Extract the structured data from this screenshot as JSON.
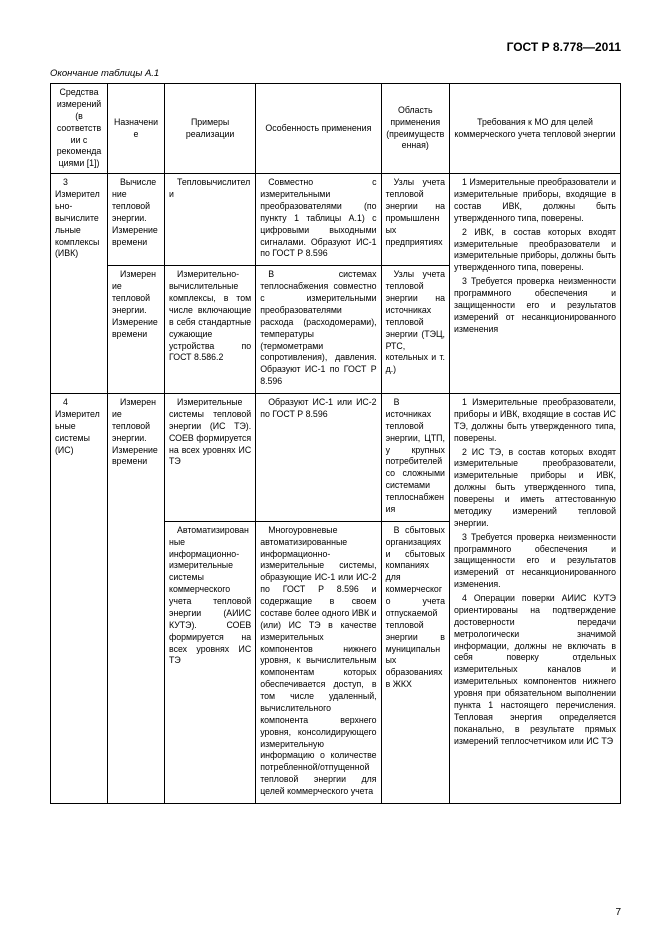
{
  "doc_header": "ГОСТ Р 8.778—2011",
  "table_caption": "Окончание таблицы А.1",
  "page_number": "7",
  "columns": {
    "c1": "Средства измерений (в соответствии с рекомендациями [1])",
    "c2": "Назначение",
    "c3": "Примеры реализации",
    "c4": "Особенность применения",
    "c5": "Область применения (преимущественная)",
    "c6": "Требования к МО для целей коммерческого учета тепловой энергии"
  },
  "r1": {
    "c1": "3 Измерительно-вычислительные комплексы (ИВК)",
    "c2": "Вычисление тепловой энергии. Измерение времени",
    "c3": "Тепловычислители",
    "c4": "Совместно с измерительными преобразователями (по пункту 1 таблицы А.1) с цифровыми выходными сигналами. Образуют ИС-1 по ГОСТ Р 8.596",
    "c5": "Узлы учета тепловой энергии на промышленных предприятиях",
    "c6_p1": "1 Измерительные преобразователи и измерительные приборы, входящие в состав ИВК, должны быть утвержденного типа, поверены.",
    "c6_p2": "2 ИВК, в состав которых входят измерительные преобразователи и измерительные приборы, должны быть утвержденного типа, поверены.",
    "c6_p3": "3 Требуется проверка неизменности программного обеспечения и защищенности его и результатов измерений от несанкционированного изменения"
  },
  "r2": {
    "c2": "Измерение тепловой энергии. Измерение времени",
    "c3": "Измерительно-вычислительные комплексы, в том числе включающие в себя стандартные сужающие устройства по ГОСТ 8.586.2",
    "c4": "В системах теплоснабжения совместно с измерительными преобразователями расхода (расходомерами), температуры (термометрами сопротивления), давления. Образуют ИС-1 по ГОСТ Р 8.596",
    "c5": "Узлы учета тепловой энергии на источниках тепловой энергии (ТЭЦ, РТС, котельных и т. д.)"
  },
  "r3": {
    "c1": "4 Измерительные системы (ИС)",
    "c2": "Измерение тепловой энергии. Измерение времени",
    "c3": "Измерительные системы тепловой энергии (ИС ТЭ). СОЕВ формируется на всех уровнях ИС ТЭ",
    "c4": "Образуют ИС-1 или ИС-2 по ГОСТ Р 8.596",
    "c5": "В источниках тепловой энергии, ЦТП, у крупных потребителей со сложными системами теплоснабжения",
    "c6_p1": "1 Измерительные преобразователи, приборы и ИВК, входящие в состав ИС ТЭ, должны быть утвержденного типа, поверены.",
    "c6_p2": "2 ИС ТЭ, в состав которых входят измерительные преобразователи, измерительные приборы и ИВК, должны быть утвержденного типа, поверены и иметь аттестованную методику измерений тепловой энергии.",
    "c6_p3": "3 Требуется проверка неизменности программного обеспечения и защищенности его и результатов измерений от несанкционированного изменения.",
    "c6_p4": "4 Операции поверки АИИС КУТЭ ориентированы на подтверждение достоверности передачи метрологически значимой информации, должны не включать в себя поверку отдельных измерительных каналов и измерительных компонентов нижнего уровня при обязательном выполнении пункта 1 настоящего перечисления. Тепловая энергия определяется поканально, в результате прямых измерений теплосчетчиком или ИС ТЭ"
  },
  "r4": {
    "c3": "Автоматизированные информационно-измерительные системы коммерческого учета тепловой энергии (АИИС КУТЭ). СОЕВ формируется на всех уровнях ИС ТЭ",
    "c4": "Многоуровневые автоматизированные информационно-измерительные системы, образующие ИС-1 или ИС-2 по ГОСТ Р 8.596 и содержащие в своем составе более одного ИВК и (или) ИС ТЭ в качестве измерительных компонентов нижнего уровня, к вычислительным компонентам которых обеспечивается доступ, в том числе удаленный, вычислительного компонента верхнего уровня, консолидирующего измерительную информацию о количестве потребленной/отпущенной тепловой энергии для целей коммерческого учета",
    "c5": "В сбытовых организациях и сбытовых компаниях для коммерческого учета отпускаемой тепловой энергии в муниципальных образованиях в ЖКХ"
  }
}
